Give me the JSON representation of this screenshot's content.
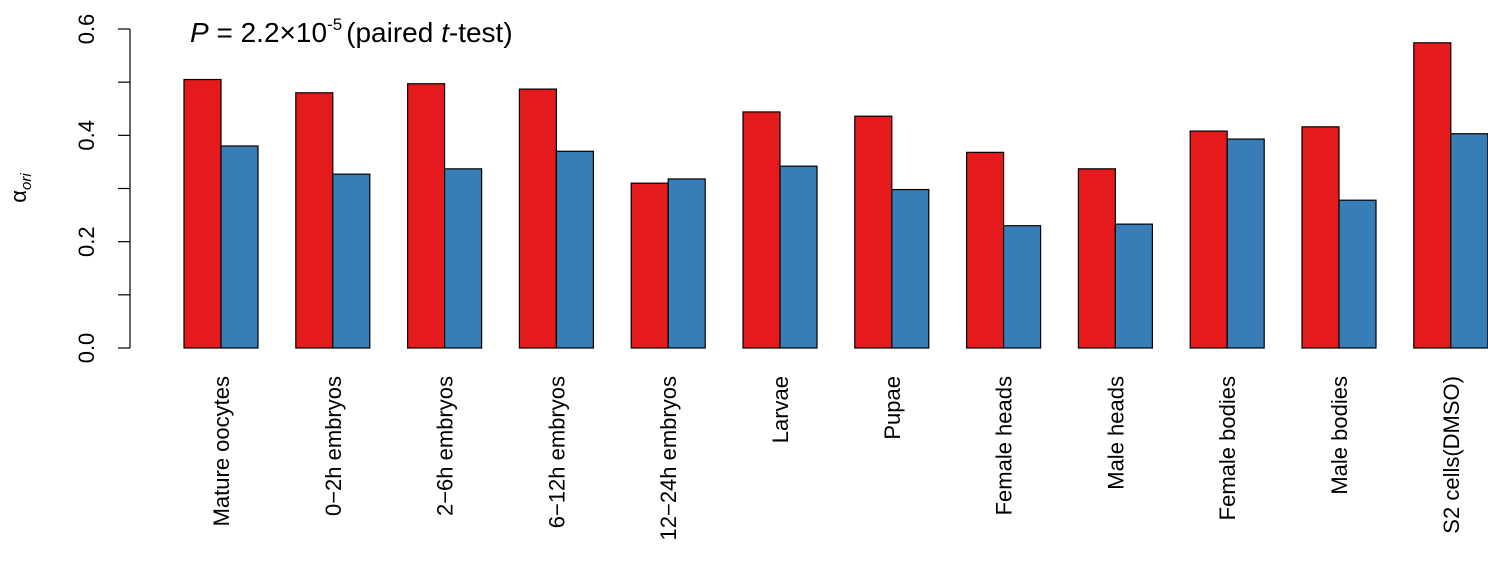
{
  "chart_data": {
    "type": "bar",
    "annotation": {
      "p_symbol": "P",
      "p_eq": " = 2.2×10",
      "p_exp": "-5",
      "test_pre": "(paired ",
      "test_t": "t",
      "test_post": "-test)"
    },
    "ylabel": {
      "greek": "α",
      "sub": "ori"
    },
    "ylim": [
      0,
      0.6
    ],
    "yticks": [
      "0.0",
      "0.2",
      "0.4",
      "0.6"
    ],
    "yticks_values": [
      0.0,
      0.2,
      0.4,
      0.6
    ],
    "yminor_ticks": [
      0.1,
      0.3,
      0.5
    ],
    "grid": false,
    "legend": "none",
    "categories": [
      "Mature oocytes",
      "0−2h embryos",
      "2−6h embryos",
      "6−12h embryos",
      "12−24h embryos",
      "Larvae",
      "Pupae",
      "Female heads",
      "Male heads",
      "Female bodies",
      "Male bodies",
      "S2 cells(DMSO)"
    ],
    "series": [
      {
        "color": "#e41a1c",
        "values": [
          0.505,
          0.48,
          0.497,
          0.487,
          0.31,
          0.444,
          0.436,
          0.368,
          0.337,
          0.408,
          0.416,
          0.574
        ]
      },
      {
        "color": "#377eb8",
        "values": [
          0.38,
          0.327,
          0.337,
          0.37,
          0.318,
          0.342,
          0.298,
          0.23,
          0.233,
          0.393,
          0.278,
          0.403
        ]
      }
    ]
  }
}
